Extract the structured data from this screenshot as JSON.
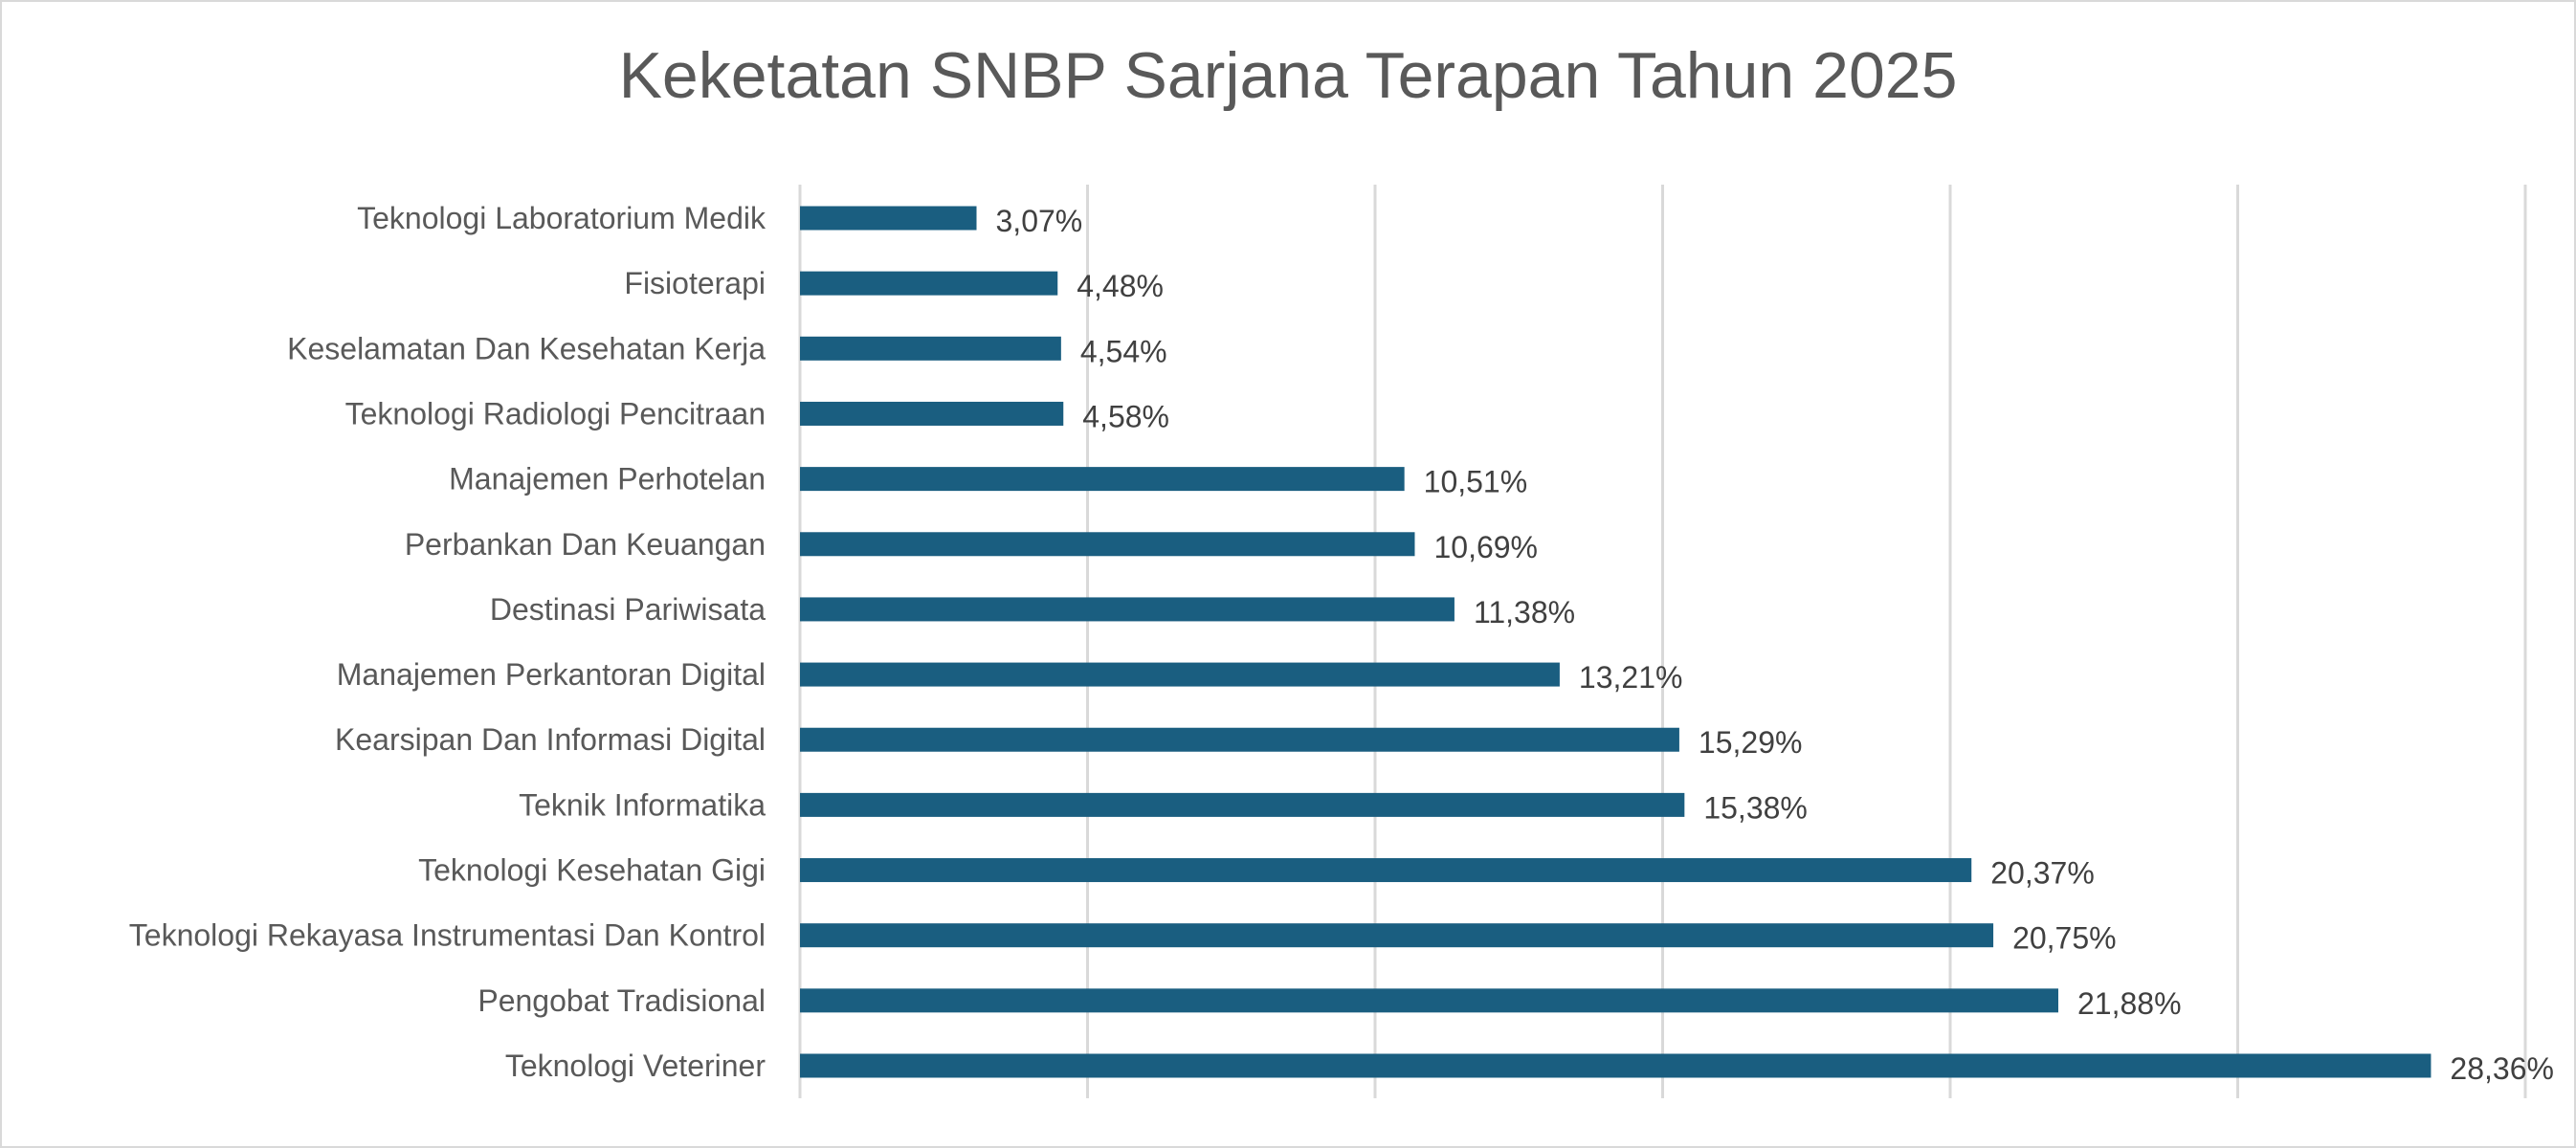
{
  "chart_data": {
    "type": "bar",
    "orientation": "horizontal",
    "title": "Keketatan SNBP Sarjana Terapan Tahun 2025",
    "categories": [
      "Teknologi Laboratorium Medik",
      "Fisioterapi",
      "Keselamatan Dan Kesehatan Kerja",
      "Teknologi Radiologi Pencitraan",
      "Manajemen Perhotelan",
      "Perbankan Dan Keuangan",
      "Destinasi Pariwisata",
      "Manajemen Perkantoran Digital",
      "Kearsipan Dan Informasi Digital",
      "Teknik Informatika",
      "Teknologi Kesehatan Gigi",
      "Teknologi Rekayasa Instrumentasi Dan Kontrol",
      "Pengobat Tradisional",
      "Teknologi Veteriner"
    ],
    "values": [
      3.07,
      4.48,
      4.54,
      4.58,
      10.51,
      10.69,
      11.38,
      13.21,
      15.29,
      15.38,
      20.37,
      20.75,
      21.88,
      28.36
    ],
    "data_labels": [
      "3,07%",
      "4,48%",
      "4,54%",
      "4,58%",
      "10,51%",
      "10,69%",
      "11,38%",
      "13,21%",
      "15,29%",
      "15,38%",
      "20,37%",
      "20,75%",
      "21,88%",
      "28,36%"
    ],
    "xlim": [
      0,
      30
    ],
    "x_gridlines": [
      0,
      5,
      10,
      15,
      20,
      25,
      30
    ],
    "x_tick_labels_visible": false,
    "grid": true,
    "legend": "none",
    "bar_color": "#1a5e80",
    "xlabel": "",
    "ylabel": ""
  }
}
